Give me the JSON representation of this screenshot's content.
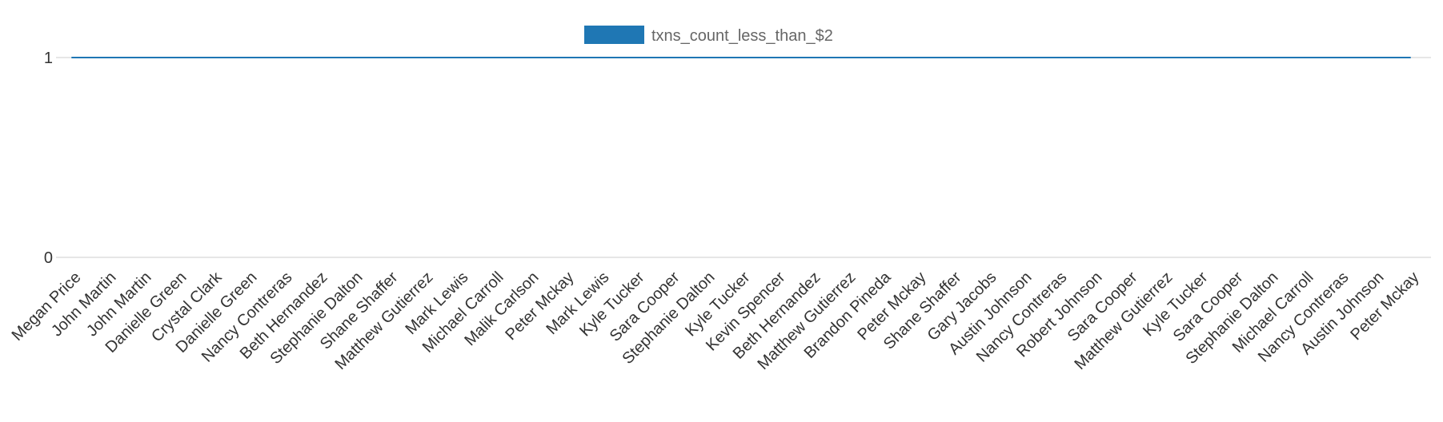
{
  "chart_data": {
    "type": "line",
    "title": "",
    "xlabel": "",
    "ylabel": "",
    "legend_position": "top-center",
    "grid": true,
    "ylim": [
      0,
      1
    ],
    "y_ticks": [
      0,
      1
    ],
    "categories": [
      "Megan Price",
      "John Martin",
      "John Martin",
      "Danielle Green",
      "Crystal Clark",
      "Danielle Green",
      "Nancy Contreras",
      "Beth Hernandez",
      "Stephanie Dalton",
      "Shane Shaffer",
      "Matthew Gutierrez",
      "Mark Lewis",
      "Michael Carroll",
      "Malik Carlson",
      "Peter Mckay",
      "Mark Lewis",
      "Kyle Tucker",
      "Sara Cooper",
      "Stephanie Dalton",
      "Kyle Tucker",
      "Kevin Spencer",
      "Beth Hernandez",
      "Matthew Gutierrez",
      "Brandon Pineda",
      "Peter Mckay",
      "Shane Shaffer",
      "Gary Jacobs",
      "Austin Johnson",
      "Nancy Contreras",
      "Robert Johnson",
      "Sara Cooper",
      "Matthew Gutierrez",
      "Kyle Tucker",
      "Sara Cooper",
      "Stephanie Dalton",
      "Michael Carroll",
      "Nancy Contreras",
      "Austin Johnson",
      "Peter Mckay"
    ],
    "series": [
      {
        "name": "txns_count_less_than_$2",
        "color": "#1f77b4",
        "values": [
          1,
          1,
          1,
          1,
          1,
          1,
          1,
          1,
          1,
          1,
          1,
          1,
          1,
          1,
          1,
          1,
          1,
          1,
          1,
          1,
          1,
          1,
          1,
          1,
          1,
          1,
          1,
          1,
          1,
          1,
          1,
          1,
          1,
          1,
          1,
          1,
          1,
          1,
          1
        ]
      }
    ]
  }
}
